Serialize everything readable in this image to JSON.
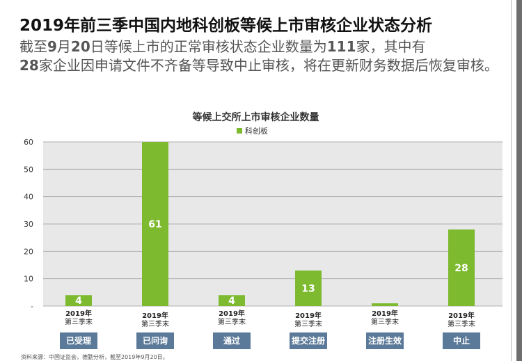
{
  "header": {
    "title_num": "2019",
    "title_text": "年前三季中国内地科创板等候上市审核企业状态分析",
    "sub1_a": "截至",
    "sub1_b": "9",
    "sub1_c": "月",
    "sub1_d": "20",
    "sub1_e": "日等候上市的正常审核状态企业数量为",
    "sub1_f": "111",
    "sub1_g": "家，其中有",
    "sub2_a": "28",
    "sub2_b": "家企业因申请文件不齐备等导致中止审核，将在更新财务数据后恢复审核。"
  },
  "source_text": "资料来源：中国证监会，德勤分析，截至2019年9月20日。",
  "chart_data": {
    "type": "bar",
    "title": "等候上交所上市审核企业数量",
    "legend": [
      "科创板"
    ],
    "series": [
      {
        "name": "科创板",
        "color": "#7dba2f",
        "values": [
          4,
          61,
          4,
          13,
          1,
          28
        ]
      }
    ],
    "data_labels": [
      "4",
      "61",
      "4",
      "13",
      "",
      "28"
    ],
    "categories": [
      "已受理",
      "已问询",
      "通过",
      "提交注册",
      "注册生效",
      "中止"
    ],
    "period_year": "2019年",
    "period_quarter": "第三季末",
    "ylim": [
      0,
      60
    ],
    "yticks": [
      "-",
      "10",
      "20",
      "30",
      "40",
      "50",
      "60"
    ],
    "grid": true,
    "legend_position": "top-center",
    "colors": {
      "bar": "#7dba2f",
      "plot_bg": "#e8e8e8",
      "grid": "#b0b0b0",
      "tag_bg": "#5b7a99",
      "tag_text": "#ffffff",
      "data_label": "#ffffff"
    }
  }
}
